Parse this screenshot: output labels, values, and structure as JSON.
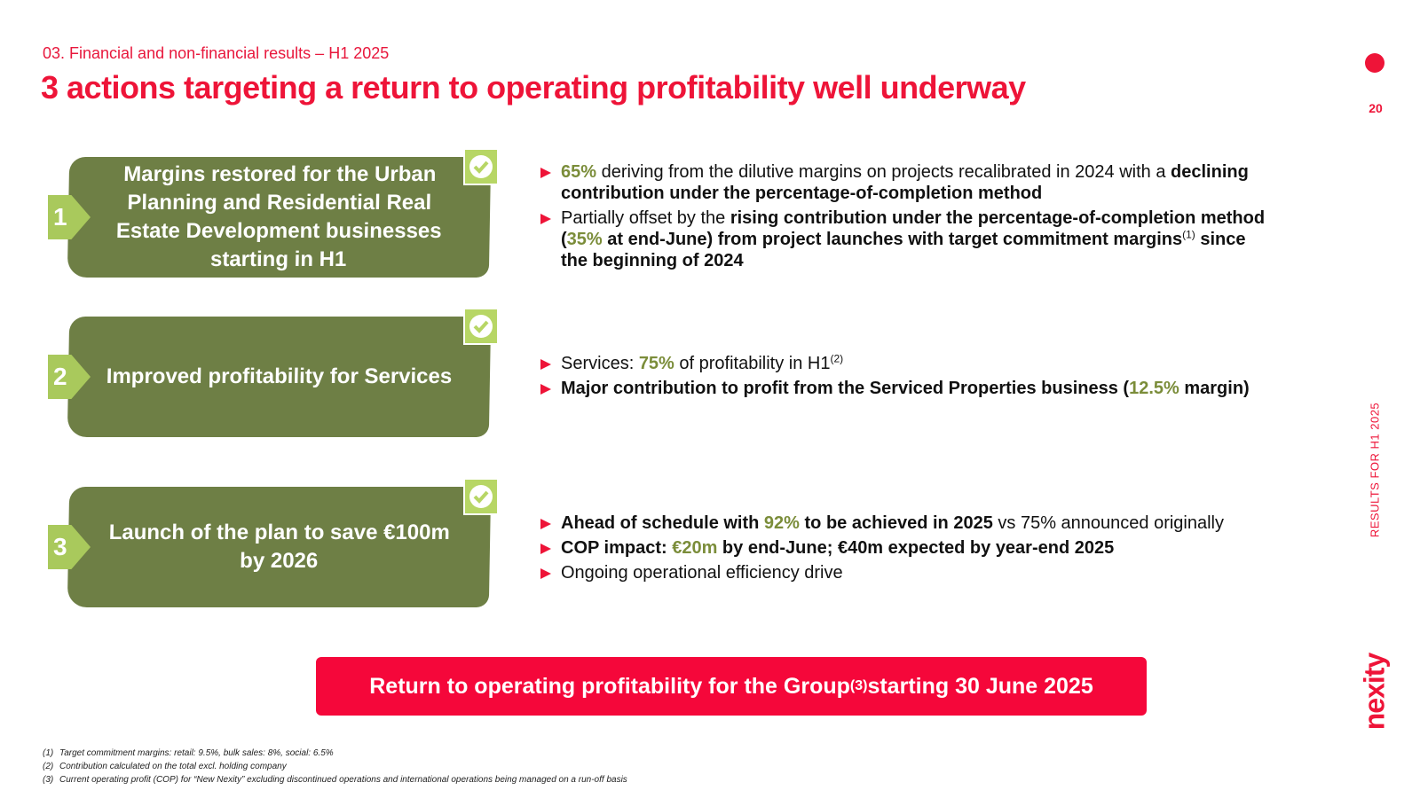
{
  "header": {
    "section": "03. Financial and non-financial results – H1 2025",
    "title": "3 actions targeting a return to operating profitability well underway"
  },
  "page_number": "20",
  "side_label": "RESULTS FOR H1 2025",
  "logo": "nexity",
  "actions": [
    {
      "number": "1",
      "title": "Margins restored for the Urban Planning and Residential Real Estate Development businesses starting in H1",
      "bullets": [
        [
          {
            "text": "65%",
            "style": "hl"
          },
          {
            "text": " deriving from the dilutive margins on projects recalibrated in 2024 with a ",
            "style": "normal"
          },
          {
            "text": "declining contribution under the percentage-of-completion method",
            "style": "bold"
          }
        ],
        [
          {
            "text": "Partially offset by the ",
            "style": "normal"
          },
          {
            "text": "rising contribution under the percentage-of-completion method (",
            "style": "bold"
          },
          {
            "text": "35%",
            "style": "hl"
          },
          {
            "text": " at end-June) from project launches with target commitment margins",
            "style": "bold"
          },
          {
            "text": "(1)",
            "style": "sup"
          },
          {
            "text": " since the beginning of 2024",
            "style": "bold"
          }
        ]
      ]
    },
    {
      "number": "2",
      "title": "Improved profitability for Services",
      "bullets": [
        [
          {
            "text": "Services: ",
            "style": "normal"
          },
          {
            "text": "75%",
            "style": "hl"
          },
          {
            "text": " of profitability in H1",
            "style": "normal"
          },
          {
            "text": "(2)",
            "style": "sup"
          }
        ],
        [
          {
            "text": "Major contribution to profit from the Serviced Properties business (",
            "style": "bold"
          },
          {
            "text": "12.5%",
            "style": "hl"
          },
          {
            "text": " margin)",
            "style": "bold"
          }
        ]
      ]
    },
    {
      "number": "3",
      "title": "Launch of the plan to save €100m by 2026",
      "bullets": [
        [
          {
            "text": "Ahead of schedule with ",
            "style": "bold"
          },
          {
            "text": "92%",
            "style": "hl"
          },
          {
            "text": " to be achieved in 2025",
            "style": "bold"
          },
          {
            "text": " vs 75% announced originally",
            "style": "normal"
          }
        ],
        [
          {
            "text": "COP impact: ",
            "style": "bold"
          },
          {
            "text": "€20m",
            "style": "hl"
          },
          {
            "text": " by end-June; €40m expected by year-end 2025",
            "style": "bold"
          }
        ],
        [
          {
            "text": "Ongoing operational efficiency drive",
            "style": "normal"
          }
        ]
      ]
    }
  ],
  "banner": [
    {
      "text": "Return to operating profitability for the Group ",
      "style": "normal"
    },
    {
      "text": "(3)",
      "style": "sup"
    },
    {
      "text": " starting 30 June 2025",
      "style": "normal"
    }
  ],
  "footnotes": [
    {
      "marker": "(1)",
      "text": "Target commitment margins: retail: 9.5%, bulk sales: 8%, social: 6.5%"
    },
    {
      "marker": "(2)",
      "text": "Contribution calculated on the total excl. holding company"
    },
    {
      "marker": "(3)",
      "text": "Current operating profit (COP) for “New Nexity” excluding discontinued operations and international operations being managed on a run-off basis"
    }
  ]
}
